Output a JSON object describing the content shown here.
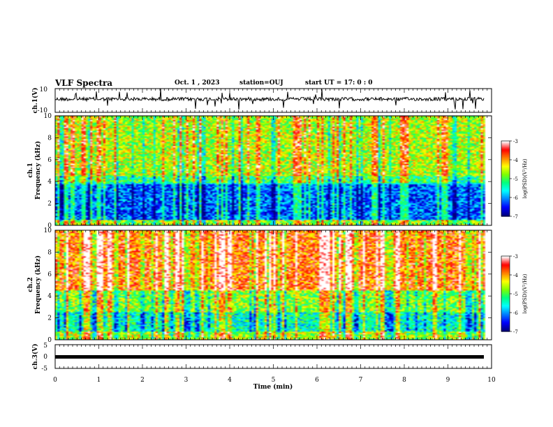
{
  "header": {
    "title": "VLF Spectra",
    "date": "Oct. 1 , 2023",
    "station": "station=OUJ",
    "start": "start UT =  17: 0 : 0"
  },
  "colorbar": {
    "label": "log(PSD)(V²/Hz)",
    "ticks": [
      "-3",
      "-4",
      "-5",
      "-6",
      "-7"
    ],
    "range": [
      -7,
      -3
    ],
    "colors": [
      "#000080",
      "#0000ff",
      "#0080ff",
      "#00ffff",
      "#00ff80",
      "#80ff00",
      "#ffff00",
      "#ff8000",
      "#ff0000",
      "#ffffff"
    ]
  },
  "chart_data": [
    {
      "type": "line",
      "panel": "waveform-ch1",
      "ylabel": "ch.1(V)",
      "ylim": [
        -10,
        10
      ],
      "yticks": [
        "10",
        "-10"
      ],
      "xlim": [
        0,
        10
      ],
      "baseline": 0,
      "color": "#000000",
      "note_visible": "noisy waveform near 0 V with occasional spikes"
    },
    {
      "type": "heatmap",
      "panel": "spectrogram-ch1",
      "ylabel": "ch.1",
      "ylabel2": "Frequency (kHz)",
      "ylim": [
        0,
        10
      ],
      "yticks": [
        "0",
        "2",
        "4",
        "6",
        "8",
        "10"
      ],
      "xlim": [
        0,
        10
      ],
      "colorscale": [
        -7,
        -3
      ]
    },
    {
      "type": "heatmap",
      "panel": "spectrogram-ch2",
      "ylabel": "ch.2",
      "ylabel2": "Frequency (kHz)",
      "ylim": [
        0,
        10
      ],
      "yticks": [
        "0",
        "2",
        "4",
        "6",
        "8",
        "10"
      ],
      "xlim": [
        0,
        10
      ],
      "colorscale": [
        -7,
        -3
      ]
    },
    {
      "type": "line",
      "panel": "waveform-ch3",
      "ylabel": "ch.3(V)",
      "ylim": [
        -5,
        5
      ],
      "yticks": [
        "5",
        "0",
        "-5"
      ],
      "xlim": [
        0,
        10
      ],
      "baseline": 0,
      "color": "#000000"
    }
  ],
  "xaxis": {
    "label": "Time (min)",
    "ticks": [
      "0",
      "1",
      "2",
      "3",
      "4",
      "5",
      "6",
      "7",
      "8",
      "9",
      "10"
    ],
    "xlim": [
      0,
      10
    ],
    "data_end": 9.83
  }
}
